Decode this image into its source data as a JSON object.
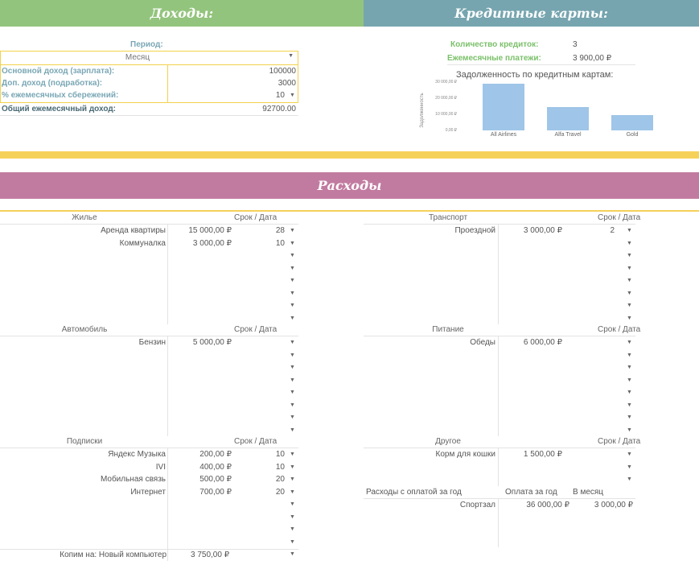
{
  "headers": {
    "income": "Доходы:",
    "credit": "Кредитные карты:",
    "expenses": "Расходы"
  },
  "colors": {
    "income_header": "#93c47d",
    "credit_header": "#76a5af",
    "expenses_header": "#c27ba0",
    "yellow": "#f6d15a"
  },
  "income": {
    "period_label": "Период:",
    "period_value": "Месяц",
    "main_label": "Основной доход (зарплата):",
    "main_value": "100000",
    "extra_label": "Доп. доход (подработка):",
    "extra_value": "3000",
    "savings_label": "% ежемесячных сбережений:",
    "savings_value": "10",
    "total_label": "Общий ежемесячный доход:",
    "total_value": "92700.00"
  },
  "credit": {
    "count_label": "Количество кредиток:",
    "count_value": "3",
    "monthly_label": "Ежемесячные платежи:",
    "monthly_value": "3 900,00 ₽"
  },
  "chart_data": {
    "type": "bar",
    "title": "Задолженность по кредитным картам:",
    "ylabel": "Задолженность",
    "xlabel": "",
    "categories": [
      "All Airlines",
      "Alfa Travel",
      "Gold"
    ],
    "values": [
      29000,
      14500,
      9500
    ],
    "ylim": [
      0,
      30000
    ],
    "yticks": [
      "0,00 ₽",
      "10 000,00 ₽",
      "20 000,00 ₽",
      "30 000,00 ₽"
    ],
    "grid": false
  },
  "expenses": {
    "date_header": "Срок / Дата",
    "housing": {
      "title": "Жилье",
      "items": [
        {
          "name": "Аренда квартиры",
          "amount": "15 000,00 ₽",
          "date": "28"
        },
        {
          "name": "Коммуналка",
          "amount": "3 000,00 ₽",
          "date": "10"
        }
      ]
    },
    "transport": {
      "title": "Транспорт",
      "items": [
        {
          "name": "Проездной",
          "amount": "3 000,00 ₽",
          "date": "2"
        }
      ]
    },
    "car": {
      "title": "Автомобиль",
      "items": [
        {
          "name": "Бензин",
          "amount": "5 000,00 ₽",
          "date": ""
        }
      ]
    },
    "food": {
      "title": "Питание",
      "items": [
        {
          "name": "Обеды",
          "amount": "6 000,00 ₽",
          "date": ""
        }
      ]
    },
    "subscriptions": {
      "title": "Подписки",
      "items": [
        {
          "name": "Яндекс Музыка",
          "amount": "200,00 ₽",
          "date": "10"
        },
        {
          "name": "IVI",
          "amount": "400,00 ₽",
          "date": "10"
        },
        {
          "name": "Мобильная связь",
          "amount": "500,00 ₽",
          "date": "20"
        },
        {
          "name": "Интернет",
          "amount": "700,00 ₽",
          "date": "20"
        }
      ]
    },
    "other": {
      "title": "Другое",
      "items": [
        {
          "name": "Корм для кошки",
          "amount": "1 500,00 ₽",
          "date": ""
        }
      ]
    },
    "yearly": {
      "label": "Расходы с оплатой за год",
      "col_year": "Оплата за год",
      "col_month": "В месяц",
      "items": [
        {
          "name": "Спортзал",
          "year": "36 000,00 ₽",
          "month": "3 000,00 ₽"
        }
      ]
    },
    "savings_label": "Копим на: Новый компьютер",
    "savings_value": "3 750,00 ₽"
  },
  "icons": {
    "dropdown": "▼"
  }
}
